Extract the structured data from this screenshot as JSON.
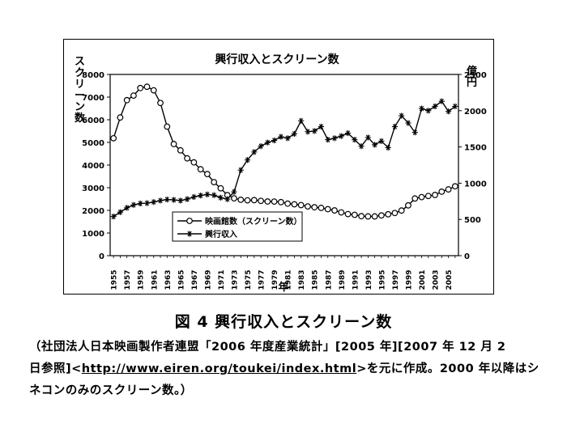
{
  "chart_data": {
    "type": "line",
    "title": "興行収入とスクリーン数",
    "xlabel": "年",
    "ylabel_left": "スクリーン数",
    "ylabel_right": "億円",
    "x_ticks": [
      1955,
      1957,
      1959,
      1961,
      1963,
      1965,
      1967,
      1969,
      1971,
      1973,
      1975,
      1977,
      1979,
      1981,
      1983,
      1985,
      1987,
      1989,
      1991,
      1993,
      1995,
      1997,
      1999,
      2001,
      2003,
      2005
    ],
    "ylim_left": [
      0,
      8000
    ],
    "yticks_left": [
      0,
      1000,
      2000,
      3000,
      4000,
      5000,
      6000,
      7000,
      8000
    ],
    "ylim_right": [
      0,
      2500
    ],
    "yticks_right": [
      0,
      500,
      1000,
      1500,
      2000,
      2500
    ],
    "legend_position": "lower-left",
    "series": [
      {
        "name": "映画館数（スクリーン数）",
        "marker": "circle",
        "axis": "left",
        "x": [
          1955,
          1956,
          1957,
          1958,
          1959,
          1960,
          1961,
          1962,
          1963,
          1964,
          1965,
          1966,
          1967,
          1968,
          1969,
          1970,
          1971,
          1972,
          1973,
          1974,
          1975,
          1976,
          1977,
          1978,
          1979,
          1980,
          1981,
          1982,
          1983,
          1984,
          1985,
          1986,
          1987,
          1988,
          1989,
          1990,
          1991,
          1992,
          1993,
          1994,
          1995,
          1996,
          1997,
          1998,
          1999,
          2000,
          2001,
          2002,
          2003,
          2004,
          2005,
          2006
        ],
        "values": [
          5184,
          6100,
          6865,
          7067,
          7400,
          7457,
          7300,
          6742,
          5696,
          4927,
          4649,
          4296,
          4119,
          3814,
          3602,
          3246,
          2974,
          2673,
          2531,
          2468,
          2443,
          2453,
          2420,
          2392,
          2388,
          2364,
          2298,
          2268,
          2233,
          2174,
          2137,
          2109,
          2053,
          1998,
          1912,
          1836,
          1804,
          1744,
          1734,
          1734,
          1776,
          1828,
          1884,
          1993,
          2221,
          2524,
          2585,
          2635,
          2681,
          2825,
          2926,
          3062
        ]
      },
      {
        "name": "興行収入",
        "marker": "asterisk",
        "axis": "right",
        "x": [
          1955,
          1956,
          1957,
          1958,
          1959,
          1960,
          1961,
          1962,
          1963,
          1964,
          1965,
          1966,
          1967,
          1968,
          1969,
          1970,
          1971,
          1972,
          1973,
          1974,
          1975,
          1976,
          1977,
          1978,
          1979,
          1980,
          1981,
          1982,
          1983,
          1984,
          1985,
          1986,
          1987,
          1988,
          1989,
          1990,
          1991,
          1992,
          1993,
          1994,
          1995,
          1996,
          1997,
          1998,
          1999,
          2000,
          2001,
          2002,
          2003,
          2004,
          2005,
          2006
        ],
        "values": [
          540,
          600,
          660,
          700,
          720,
          725,
          740,
          760,
          775,
          770,
          760,
          780,
          810,
          830,
          845,
          835,
          800,
          780,
          880,
          1180,
          1320,
          1430,
          1510,
          1560,
          1590,
          1640,
          1620,
          1680,
          1860,
          1710,
          1720,
          1780,
          1600,
          1620,
          1650,
          1690,
          1600,
          1510,
          1630,
          1530,
          1580,
          1490,
          1780,
          1930,
          1830,
          1700,
          2030,
          2000,
          2060,
          2130,
          1990,
          2060
        ]
      }
    ],
    "legend": [
      {
        "label": "映画館数（スクリーン数）",
        "marker": "circle"
      },
      {
        "label": "興行収入",
        "marker": "asterisk"
      }
    ]
  },
  "caption": {
    "title": "図 4 興行収入とスクリーン数",
    "line1": "（社団法人日本映画製作者連盟「2006 年度産業統計」[2005 年][2007 年 12 月 2",
    "line2_prefix": "日参照]<",
    "line2_link": "http://www.eiren.org/toukei/index.html",
    "line2_suffix": ">を元に作成。2000 年以降はシ",
    "line3": "ネコンのみのスクリーン数。）"
  }
}
